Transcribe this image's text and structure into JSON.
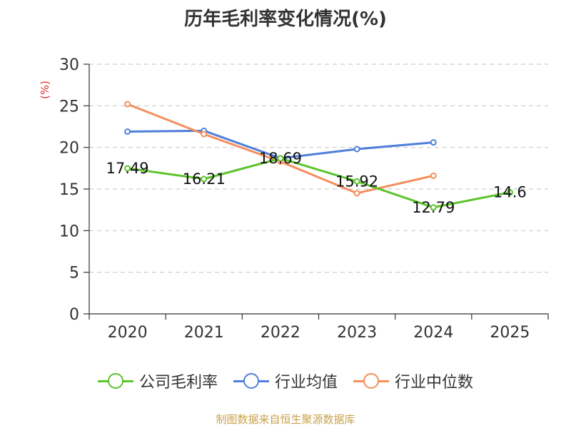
{
  "chart_data": {
    "type": "line",
    "title": "历年毛利率变化情况(%)",
    "ylabel": "(%)",
    "xlabel": "",
    "categories": [
      "2020",
      "2021",
      "2022",
      "2023",
      "2024",
      "2025"
    ],
    "ylim": [
      0,
      30
    ],
    "yticks": [
      0,
      5,
      10,
      15,
      20,
      25,
      30
    ],
    "grid": true,
    "legend_position": "bottom",
    "series": [
      {
        "name": "公司毛利率",
        "color": "#5bc42b",
        "values": [
          17.49,
          16.21,
          18.69,
          15.92,
          12.79,
          14.6
        ],
        "labels": [
          "17.49",
          "16.21",
          "18.69",
          "15.92",
          "12.79",
          "14.6"
        ]
      },
      {
        "name": "行业均值",
        "color": "#4f7fdb",
        "values": [
          21.9,
          22.0,
          18.7,
          19.8,
          20.6,
          null
        ]
      },
      {
        "name": "行业中位数",
        "color": "#f48e5b",
        "values": [
          25.2,
          21.6,
          18.3,
          14.5,
          16.6,
          null
        ]
      }
    ],
    "source": "制图数据来自恒生聚源数据库"
  },
  "colors": {
    "axis": "#333333",
    "grid": "#cccccc",
    "ylabel": "#e0302e",
    "source": "#c9a14a"
  }
}
